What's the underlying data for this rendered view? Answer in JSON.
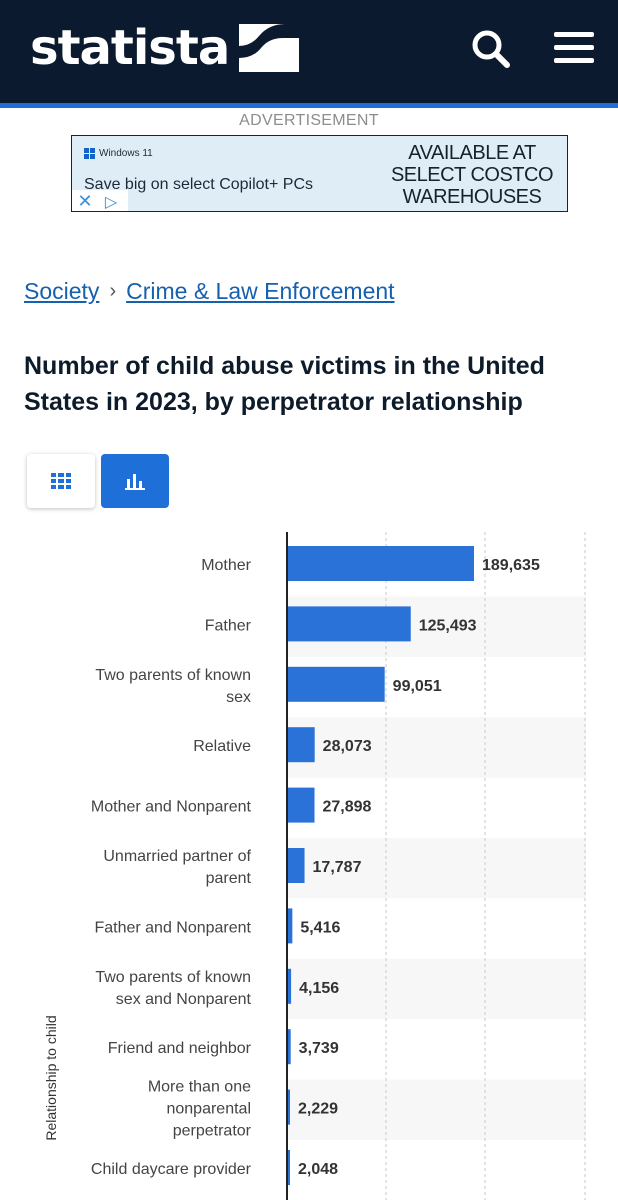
{
  "header": {
    "logo_text": "statista",
    "search_icon": "search-icon",
    "menu_icon": "hamburger-menu-icon",
    "bar_color": "#0b1a2e",
    "accent_color": "#1f6fd8"
  },
  "ad": {
    "label": "ADVERTISEMENT",
    "brand": "Windows 11",
    "headline": "Save big on select Copilot+ PCs",
    "cta_lines": [
      "AVAILABLE AT",
      "SELECT COSTCO",
      "WAREHOUSES"
    ],
    "close_icon": "close-icon",
    "adchoices_icon": "adchoices-icon"
  },
  "breadcrumb": {
    "items": [
      "Society",
      "Crime & Law Enforcement"
    ],
    "separator": "›"
  },
  "page_title": "Number of child abuse victims in the United States in 2023, by perpetrator relationship",
  "view_toggle": {
    "table_icon": "table-grid-icon",
    "chart_icon": "bar-chart-icon",
    "active": "chart"
  },
  "chart_data": {
    "type": "bar",
    "orientation": "horizontal",
    "categories": [
      "Mother",
      "Father",
      "Two parents of known sex",
      "Relative",
      "Mother and Nonparent",
      "Unmarried partner of parent",
      "Father and Nonparent",
      "Two parents of known sex and Nonparent",
      "Friend and neighbor",
      "More than one nonparental perpetrator",
      "Child daycare provider"
    ],
    "values": [
      189635,
      125493,
      99051,
      28073,
      27898,
      17787,
      5416,
      4156,
      3739,
      2229,
      2048
    ],
    "value_labels": [
      "189,635",
      "125,493",
      "99,051",
      "28,073",
      "27,898",
      "17,787",
      "5,416",
      "4,156",
      "3,739",
      "2,229",
      "2,048"
    ],
    "ylabel": "Relationship to child",
    "xlim": [
      0,
      300000
    ],
    "grid": true,
    "bar_color": "#2a72d8"
  }
}
